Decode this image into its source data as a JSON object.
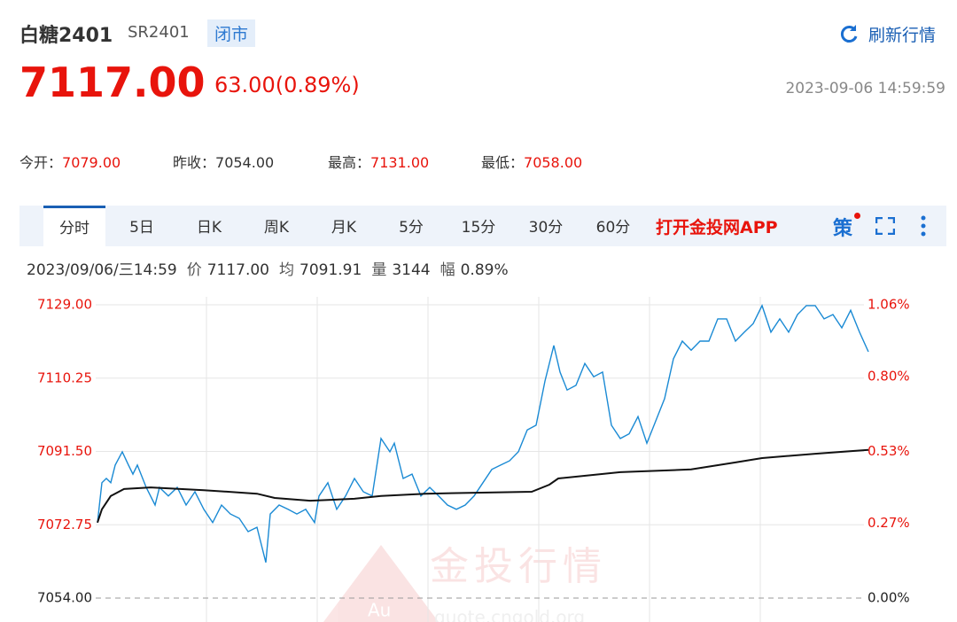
{
  "header": {
    "name": "白糖2401",
    "code": "SR2401",
    "status": "闭市",
    "refresh": "刷新行情",
    "price": "7117.00",
    "change": "63.00(0.89%)",
    "time": "2023-09-06 14:59:59"
  },
  "stats": [
    {
      "label": "今开：",
      "value": "7079.00"
    },
    {
      "label": "昨收：",
      "value": "7054.00"
    },
    {
      "label": "最高：",
      "value": "7131.00"
    },
    {
      "label": "最低：",
      "value": "7058.00"
    }
  ],
  "tabs": [
    "分时",
    "5日",
    "日K",
    "周K",
    "月K",
    "5分",
    "15分",
    "30分",
    "60分"
  ],
  "promo": "打开金投网APP",
  "strategy": "策",
  "info": {
    "datetime": "2023/09/06/三14:59",
    "items": [
      {
        "label": "价",
        "value": "7117.00"
      },
      {
        "label": "均",
        "value": "7091.91"
      },
      {
        "label": "量",
        "value": "3144"
      },
      {
        "label": "幅",
        "value": "0.89%"
      }
    ]
  },
  "watermark": {
    "title": "金投行情",
    "badge": "Au",
    "url": "quote.cngold.org"
  },
  "chart_data": {
    "type": "line",
    "xlim": [
      0,
      875
    ],
    "ylim": [
      7054,
      7129
    ],
    "yticks": [
      {
        "value": 7054,
        "label": "7054.00"
      },
      {
        "value": 7072.75,
        "label": "7072.75"
      },
      {
        "value": 7091.5,
        "label": "7091.50"
      },
      {
        "value": 7110.25,
        "label": "7110.25"
      },
      {
        "value": 7129,
        "label": "7129.00"
      }
    ],
    "y2lim": [
      0,
      1.06
    ],
    "y2ticks": [
      {
        "value": 0,
        "label": "0.00%"
      },
      {
        "value": 0.27,
        "label": "0.27%"
      },
      {
        "value": 0.53,
        "label": "0.53%"
      },
      {
        "value": 0.8,
        "label": "0.80%"
      },
      {
        "value": 1.06,
        "label": "1.06%"
      }
    ],
    "series": [
      {
        "name": "价",
        "color": "#1a8ad4",
        "x": [
          0,
          5,
          10,
          15,
          20,
          28,
          35,
          40,
          45,
          55,
          65,
          70,
          80,
          90,
          100,
          110,
          120,
          130,
          140,
          150,
          160,
          170,
          180,
          190,
          195,
          205,
          215,
          225,
          235,
          245,
          250,
          260,
          270,
          280,
          290,
          300,
          310,
          320,
          330,
          335,
          345,
          355,
          365,
          375,
          385,
          395,
          405,
          415,
          425,
          435,
          445,
          455,
          465,
          475,
          485,
          495,
          505,
          515,
          522,
          530,
          540,
          550,
          560,
          570,
          580,
          590,
          600,
          610,
          620,
          630,
          640,
          650,
          660,
          670,
          680,
          690,
          700,
          710,
          720,
          730,
          740,
          750,
          760,
          770,
          780,
          790,
          800,
          810,
          820,
          830,
          840,
          850,
          860,
          870
        ],
        "values": [
          7073.3,
          7083.5,
          7084.6,
          7083.5,
          7088.0,
          7091.4,
          7088.0,
          7085.7,
          7088.0,
          7082.3,
          7077.8,
          7082.3,
          7080.1,
          7082.3,
          7077.8,
          7081.2,
          7076.7,
          7073.3,
          7077.8,
          7075.5,
          7074.4,
          7071.0,
          7072.1,
          7063.1,
          7075.5,
          7077.8,
          7076.7,
          7075.5,
          7076.7,
          7073.3,
          7080.1,
          7083.5,
          7076.7,
          7080.1,
          7084.6,
          7081.2,
          7080.1,
          7094.8,
          7091.4,
          7093.6,
          7084.6,
          7085.7,
          7080.1,
          7082.3,
          7080.1,
          7077.8,
          7076.7,
          7077.8,
          7080.1,
          7083.5,
          7086.9,
          7088.0,
          7089.1,
          7091.4,
          7097.0,
          7098.2,
          7109.5,
          7118.6,
          7111.8,
          7107.2,
          7108.4,
          7114.0,
          7110.6,
          7111.8,
          7098.2,
          7094.8,
          7096.0,
          7100.4,
          7093.6,
          7099.3,
          7105.0,
          7115.2,
          7119.7,
          7117.4,
          7119.7,
          7119.7,
          7125.4,
          7125.4,
          7119.7,
          7122.0,
          7124.2,
          7128.8,
          7122.0,
          7125.4,
          7122.0,
          7126.5,
          7128.8,
          7128.8,
          7125.4,
          7126.5,
          7123.1,
          7127.6,
          7122.0,
          7117.0
        ]
      },
      {
        "name": "均",
        "color": "#111111",
        "x": [
          0,
          5,
          15,
          30,
          60,
          120,
          180,
          200,
          240,
          290,
          320,
          370,
          490,
          510,
          520,
          590,
          670,
          720,
          750,
          810,
          870
        ],
        "values": [
          7073.3,
          7076.7,
          7080.1,
          7081.9,
          7082.3,
          7081.6,
          7080.7,
          7079.6,
          7078.9,
          7079.4,
          7080.1,
          7080.7,
          7081.2,
          7083.0,
          7084.6,
          7086.2,
          7086.9,
          7088.7,
          7089.8,
          7090.9,
          7091.9
        ]
      }
    ]
  }
}
